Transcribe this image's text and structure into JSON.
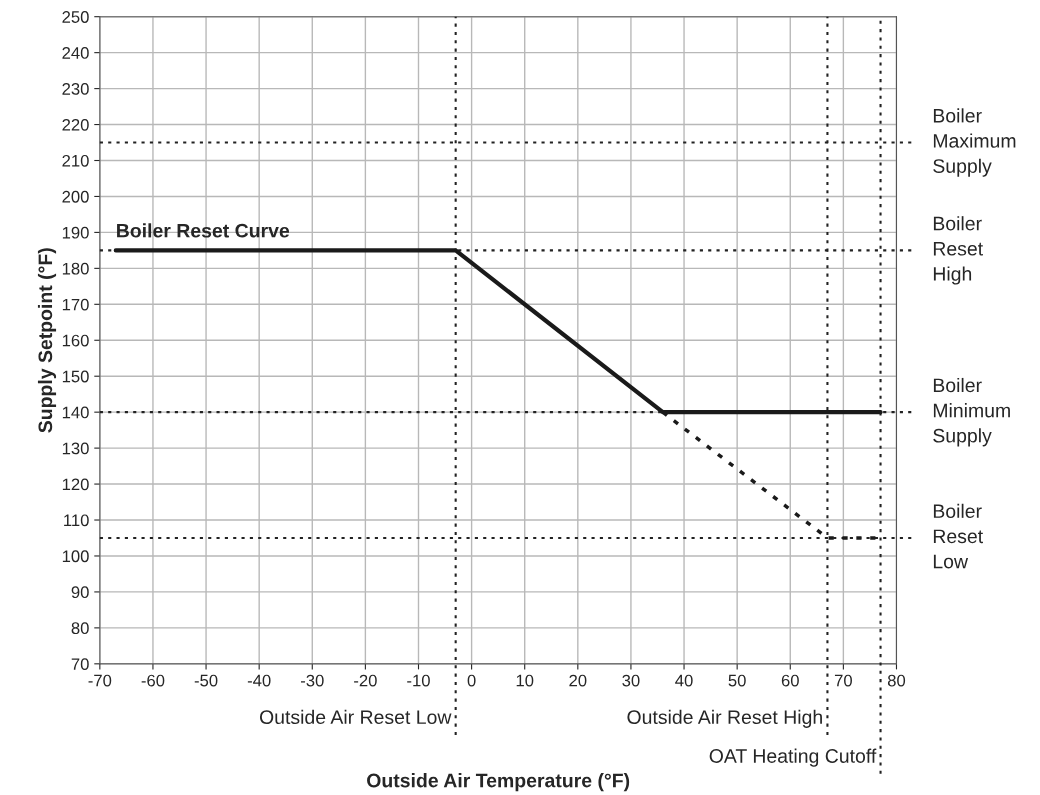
{
  "chart_data": {
    "type": "line",
    "xlabel": "Outside Air Temperature (°F)",
    "ylabel": "Supply Setpoint (°F)",
    "xlim": [
      -70,
      80
    ],
    "xticks": [
      -70,
      -60,
      -50,
      -40,
      -30,
      -20,
      -10,
      0,
      10,
      20,
      30,
      40,
      50,
      60,
      70,
      80
    ],
    "ylim": [
      70,
      250
    ],
    "yticks": [
      70,
      80,
      90,
      100,
      110,
      120,
      130,
      140,
      150,
      160,
      170,
      180,
      190,
      200,
      210,
      220,
      230,
      240,
      250
    ],
    "grid": true,
    "legend": false,
    "marker": "none",
    "series": [
      {
        "name": "Boiler Reset Curve",
        "color": "#1a1a1a",
        "x": [
          -67,
          -3,
          36,
          77
        ],
        "values": [
          185,
          185,
          140,
          140
        ],
        "line_style": "solid"
      },
      {
        "color": "#1a1a1a",
        "x": [
          36,
          67,
          77
        ],
        "values": [
          140,
          105,
          105
        ],
        "line_style": "dotted"
      }
    ],
    "ref_lines": [
      {
        "axis": "y",
        "value": 215,
        "label": "Boiler\nMaximum\nSupply",
        "line_style": "dotted"
      },
      {
        "axis": "y",
        "value": 185,
        "label": "Boiler\nReset\nHigh",
        "line_style": "dotted"
      },
      {
        "axis": "y",
        "value": 140,
        "label": "Boiler\nMinimum\nSupply",
        "line_style": "dotted"
      },
      {
        "axis": "y",
        "value": 105,
        "label": "Boiler\nReset\nLow",
        "line_style": "dotted"
      },
      {
        "axis": "x",
        "value": -3,
        "label": "Outside Air Reset Low",
        "line_style": "dotted"
      },
      {
        "axis": "x",
        "value": 67,
        "label": "Outside Air Reset High",
        "line_style": "dotted"
      },
      {
        "axis": "x",
        "value": 77,
        "label": "OAT Heating Cutoff",
        "line_style": "dotted"
      }
    ]
  }
}
